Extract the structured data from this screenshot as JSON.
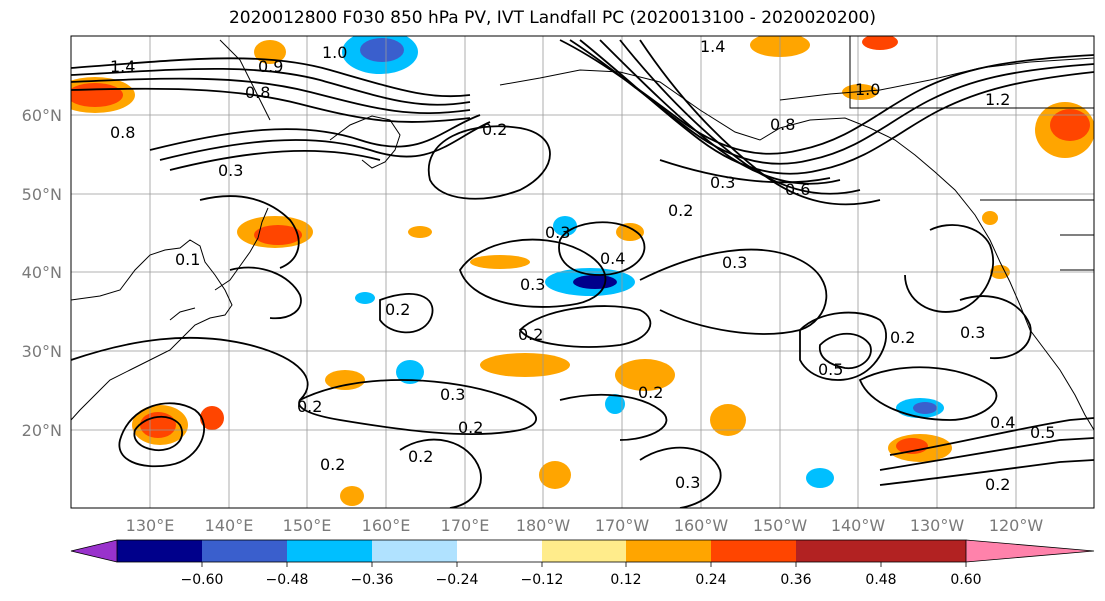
{
  "title": "2020012800 F030 850 hPa PV, IVT Landfall PC (2020013100 - 2020020200)",
  "lat_labels": [
    "60°N",
    "50°N",
    "40°N",
    "30°N",
    "20°N"
  ],
  "lon_labels": [
    "130°E",
    "140°E",
    "150°E",
    "160°E",
    "170°E",
    "180°W",
    "170°W",
    "160°W",
    "150°W",
    "140°W",
    "130°W",
    "120°W"
  ],
  "colorbar": {
    "ticks": [
      "−0.60",
      "−0.48",
      "−0.36",
      "−0.24",
      "−0.12",
      "0.12",
      "0.24",
      "0.36",
      "0.48",
      "0.60"
    ],
    "colors": [
      "#9932cc",
      "#00008b",
      "#3a5fcd",
      "#00bfff",
      "#b0e2ff",
      "#ffffff",
      "#ffec8b",
      "#ffa500",
      "#ff4500",
      "#b22222",
      "#ff82ab"
    ]
  },
  "contour_labels": [
    "1.4",
    "1.0",
    "0.9",
    "0.8",
    "0.8",
    "1.4",
    "1.0",
    "0.2",
    "0.3",
    "0.3",
    "0.2",
    "0.4",
    "0.3",
    "0.3",
    "0.2",
    "0.2",
    "0.3",
    "0.2",
    "0.2",
    "0.2",
    "0.3",
    "0.2",
    "0.5",
    "0.2",
    "0.3",
    "0.4",
    "0.5",
    "0.2",
    "0.3",
    "0.1",
    "0.2",
    "1.2",
    "0.8",
    "0.6"
  ]
}
